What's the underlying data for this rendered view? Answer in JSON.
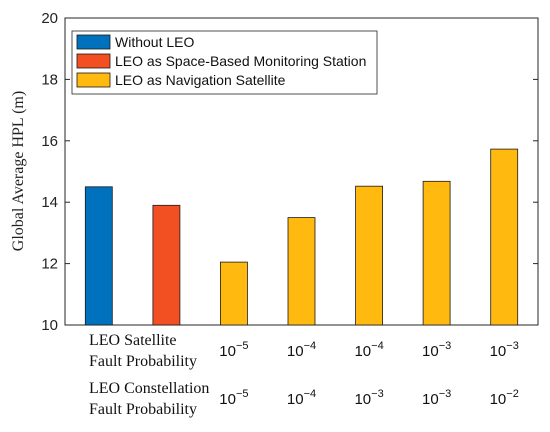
{
  "chart_data": {
    "type": "bar",
    "ylabel": "Global Average HPL (m)",
    "ylim": [
      10,
      20
    ],
    "yticks": [
      "10",
      "12",
      "14",
      "16",
      "18",
      "20"
    ],
    "grid": false,
    "legend_position": "top-left",
    "series": [
      {
        "name": "Without LEO",
        "color": "#0072BD"
      },
      {
        "name": "LEO as Space-Based Monitoring Station",
        "color": "#F25022"
      },
      {
        "name": "LEO as Navigation Satellite",
        "color": "#FFB90F"
      }
    ],
    "bars": [
      {
        "series": 0,
        "value": 14.5
      },
      {
        "series": 1,
        "value": 13.9
      },
      {
        "series": 2,
        "value": 12.05
      },
      {
        "series": 2,
        "value": 13.5
      },
      {
        "series": 2,
        "value": 14.52
      },
      {
        "series": 2,
        "value": 14.68
      },
      {
        "series": 2,
        "value": 15.73
      }
    ],
    "row_labels": {
      "satellite": [
        "LEO Satellite",
        "Fault Probability"
      ],
      "constellation": [
        "LEO Constellation",
        "Fault Probability"
      ]
    },
    "satellite_fault_probability": [
      {
        "base": "10",
        "exp": "−5"
      },
      {
        "base": "10",
        "exp": "−4"
      },
      {
        "base": "10",
        "exp": "−4"
      },
      {
        "base": "10",
        "exp": "−3"
      },
      {
        "base": "10",
        "exp": "−3"
      }
    ],
    "constellation_fault_probability": [
      {
        "base": "10",
        "exp": "−5"
      },
      {
        "base": "10",
        "exp": "−4"
      },
      {
        "base": "10",
        "exp": "−3"
      },
      {
        "base": "10",
        "exp": "−3"
      },
      {
        "base": "10",
        "exp": "−2"
      }
    ]
  }
}
